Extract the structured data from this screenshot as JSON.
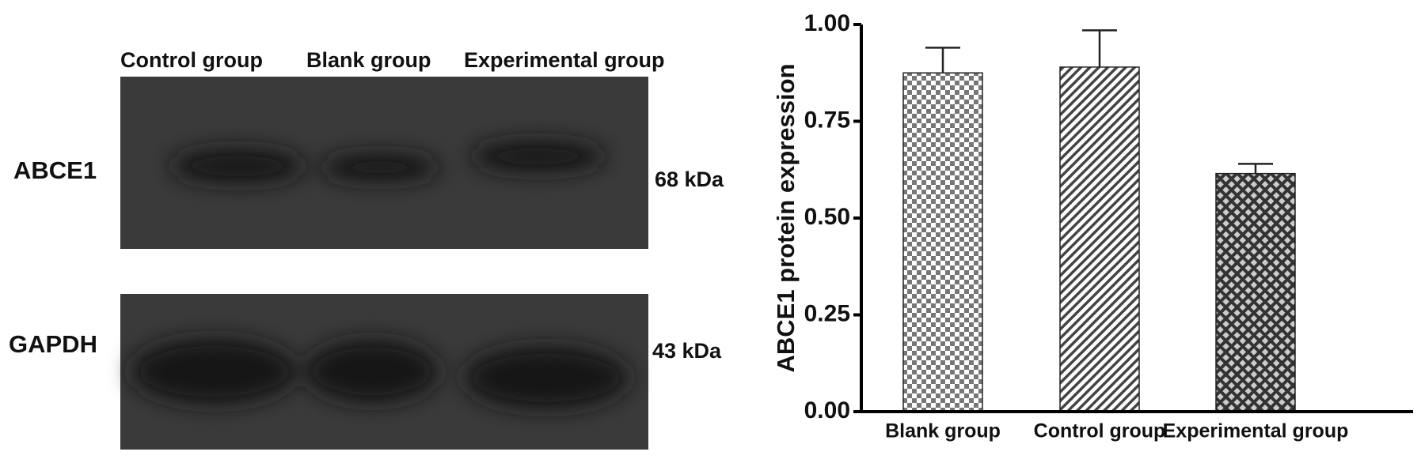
{
  "blot": {
    "lanes": [
      "Control group",
      "Blank group",
      "Experimental group"
    ],
    "rows": [
      {
        "label": "ABCE1",
        "size": "68 kDa"
      },
      {
        "label": "GAPDH",
        "size": "43 kDa"
      }
    ]
  },
  "chart_data": {
    "type": "bar",
    "y_label": "ABCE1 protein expression",
    "categories": [
      "Blank group",
      "Control group",
      "Experimental group"
    ],
    "values": [
      0.875,
      0.89,
      0.615
    ],
    "errors": [
      0.065,
      0.095,
      0.025
    ],
    "patterns": [
      "checker",
      "diagonal",
      "crosshatch"
    ],
    "ylim": [
      0,
      1
    ],
    "yticks": [
      {
        "value": 0,
        "label": "0.00"
      },
      {
        "value": 0.25,
        "label": "0.25"
      },
      {
        "value": 0.5,
        "label": "0.50"
      },
      {
        "value": 0.75,
        "label": "0.75"
      },
      {
        "value": 1,
        "label": "1.00"
      }
    ]
  }
}
